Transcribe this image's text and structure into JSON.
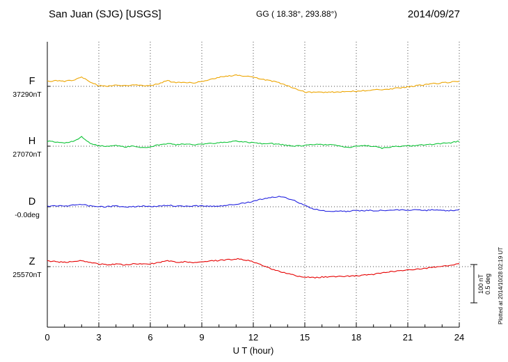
{
  "header": {
    "station": "San Juan (SJG)  [USGS]",
    "coords": "GG ( 18.38°, 293.88°)",
    "date": "2014/09/27"
  },
  "xaxis": {
    "label": "U T (hour)",
    "ticks": [
      0,
      3,
      6,
      9,
      12,
      15,
      18,
      21,
      24
    ]
  },
  "scale_bar": {
    "nt_label": "100 nT",
    "deg_label": "0.5 deg"
  },
  "footer_note": "Plotted at 2014/10/28 02:19 UT",
  "chart_data": {
    "type": "line",
    "xlabel": "U T (hour)",
    "xlim": [
      0,
      24
    ],
    "x_step_hours": 0.5,
    "values_are": "offsets from baseline",
    "scale_reference": {
      "nT": 100,
      "deg": 0.5
    },
    "grid": "dotted baselines and 3-hour verticals",
    "legend_position": "left margin",
    "series": [
      {
        "name": "F",
        "unit": "nT",
        "baseline": 37290,
        "baseline_label": "37290nT",
        "color": "#eda500",
        "values": [
          13,
          15,
          13,
          16,
          24,
          11,
          2,
          0,
          4,
          2,
          4,
          2,
          2,
          7,
          15,
          9,
          11,
          9,
          13,
          18,
          24,
          27,
          29,
          27,
          24,
          18,
          15,
          9,
          2,
          -7,
          -15,
          -16,
          -16,
          -15,
          -15,
          -13,
          -13,
          -11,
          -9,
          -9,
          -7,
          -4,
          -2,
          2,
          4,
          7,
          9,
          11,
          13
        ]
      },
      {
        "name": "H",
        "unit": "nT",
        "baseline": 27070,
        "baseline_label": "27070nT",
        "color": "#0ec437",
        "values": [
          13,
          11,
          9,
          13,
          24,
          7,
          2,
          0,
          2,
          -2,
          0,
          -4,
          -2,
          4,
          7,
          4,
          5,
          4,
          5,
          7,
          9,
          11,
          13,
          11,
          9,
          7,
          7,
          5,
          2,
          0,
          2,
          4,
          4,
          4,
          2,
          -4,
          0,
          2,
          0,
          -5,
          -2,
          0,
          0,
          2,
          4,
          5,
          7,
          9,
          13
        ]
      },
      {
        "name": "D",
        "unit": "deg",
        "baseline": -0.0,
        "baseline_label": "-0.0deg",
        "color": "#2222e0",
        "values": [
          0.01,
          0.01,
          0.01,
          0.02,
          0.03,
          0.01,
          0,
          0,
          0.01,
          0,
          0,
          0.01,
          0,
          0.01,
          0.02,
          0.01,
          0.01,
          0.01,
          0.01,
          0.01,
          0.01,
          0.02,
          0.03,
          0.05,
          0.07,
          0.1,
          0.12,
          0.13,
          0.11,
          0.07,
          0.02,
          -0.03,
          -0.05,
          -0.06,
          -0.06,
          -0.06,
          -0.05,
          -0.05,
          -0.05,
          -0.05,
          -0.05,
          -0.04,
          -0.05,
          -0.04,
          -0.05,
          -0.04,
          -0.05,
          -0.05,
          -0.04
        ]
      },
      {
        "name": "Z",
        "unit": "nT",
        "baseline": 25570,
        "baseline_label": "25570nT",
        "color": "#e60000",
        "values": [
          15,
          13,
          11,
          13,
          16,
          11,
          7,
          5,
          7,
          5,
          7,
          7,
          7,
          11,
          16,
          11,
          13,
          11,
          13,
          15,
          16,
          18,
          20,
          18,
          13,
          4,
          -5,
          -13,
          -18,
          -24,
          -27,
          -29,
          -27,
          -27,
          -25,
          -25,
          -24,
          -22,
          -20,
          -16,
          -13,
          -11,
          -9,
          -7,
          -5,
          -2,
          0,
          4,
          7
        ]
      }
    ]
  }
}
